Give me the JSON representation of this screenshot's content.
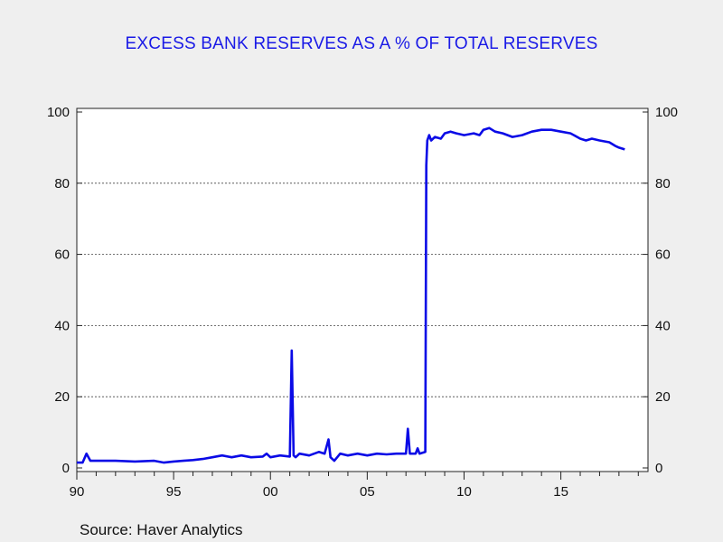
{
  "chart_data": {
    "type": "line",
    "title": "EXCESS BANK RESERVES AS A % OF TOTAL RESERVES",
    "source": "Source:  Haver Analytics",
    "xlabel": "",
    "ylabel": "",
    "xlim": [
      1990,
      2019.5
    ],
    "ylim": [
      0,
      100
    ],
    "x_tick_values": [
      1990,
      1995,
      2000,
      2005,
      2010,
      2015
    ],
    "x_tick_labels": [
      "90",
      "95",
      "00",
      "05",
      "10",
      "15"
    ],
    "y_ticks": [
      0,
      20,
      40,
      60,
      80,
      100
    ],
    "y_tick_labels": [
      "0",
      "20",
      "40",
      "60",
      "80",
      "100"
    ],
    "grid": "horizontal dotted",
    "line_color": "#0a0ae6",
    "series": [
      {
        "x": [
          1990.0,
          1990.3,
          1990.5,
          1990.7,
          1991.0,
          1992.0,
          1993.0,
          1994.0,
          1994.5,
          1995.0,
          1995.5,
          1996.0,
          1996.5,
          1997.0,
          1997.5,
          1998.0,
          1998.5,
          1999.0,
          1999.6,
          1999.8,
          2000.0,
          2000.5,
          2001.0,
          2001.1,
          2001.2,
          2001.3,
          2001.5,
          2002.0,
          2002.5,
          2002.8,
          2003.0,
          2003.1,
          2003.3,
          2003.6,
          2004.0,
          2004.5,
          2005.0,
          2005.5,
          2006.0,
          2006.5,
          2007.0,
          2007.1,
          2007.2,
          2007.5,
          2007.6,
          2007.7,
          2008.0,
          2008.05,
          2008.1,
          2008.2,
          2008.3,
          2008.5,
          2008.8,
          2009.0,
          2009.3,
          2009.6,
          2010.0,
          2010.5,
          2010.8,
          2011.0,
          2011.3,
          2011.6,
          2012.0,
          2012.5,
          2013.0,
          2013.5,
          2014.0,
          2014.5,
          2015.0,
          2015.5,
          2016.0,
          2016.3,
          2016.6,
          2017.0,
          2017.5,
          2017.8,
          2018.0,
          2018.3
        ],
        "values": [
          1.5,
          1.5,
          4.0,
          2.0,
          2.0,
          2.0,
          1.8,
          2.0,
          1.5,
          1.8,
          2.0,
          2.2,
          2.5,
          3.0,
          3.5,
          3.0,
          3.5,
          3.0,
          3.2,
          4.0,
          3.0,
          3.5,
          3.2,
          33.0,
          3.5,
          3.0,
          4.0,
          3.5,
          4.5,
          4.0,
          8.0,
          3.0,
          2.0,
          4.0,
          3.5,
          4.0,
          3.5,
          4.0,
          3.8,
          4.0,
          4.0,
          11.0,
          4.0,
          4.0,
          5.5,
          4.0,
          4.5,
          85.0,
          92.0,
          93.5,
          92.0,
          93.0,
          92.5,
          94.0,
          94.5,
          94.0,
          93.5,
          94.0,
          93.5,
          95.0,
          95.5,
          94.5,
          94.0,
          93.0,
          93.5,
          94.5,
          95.0,
          95.0,
          94.5,
          94.0,
          92.5,
          92.0,
          92.5,
          92.0,
          91.5,
          90.5,
          90.0,
          89.5
        ]
      }
    ]
  }
}
